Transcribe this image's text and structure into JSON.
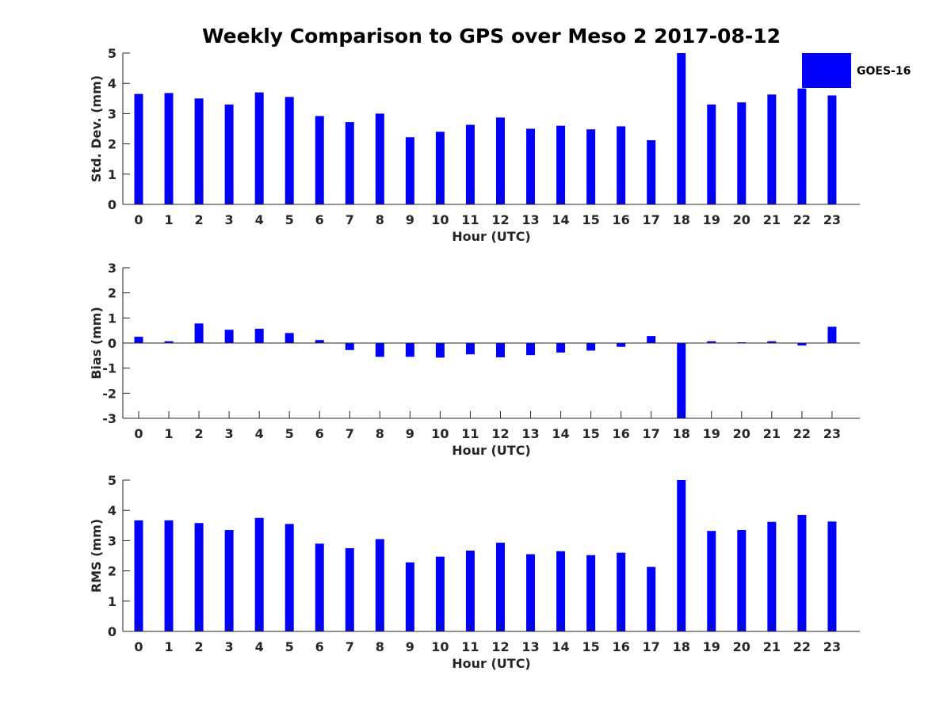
{
  "chart_data": [
    {
      "type": "bar",
      "title": "Weekly Comparison to GPS over Meso 2 2017-08-12",
      "xlabel": "Hour (UTC)",
      "ylabel": "Std. Dev. (mm)",
      "ylim": [
        0,
        5
      ],
      "yticks": [
        0,
        1,
        2,
        3,
        4,
        5
      ],
      "categories": [
        "0",
        "1",
        "2",
        "3",
        "4",
        "5",
        "6",
        "7",
        "8",
        "9",
        "10",
        "11",
        "12",
        "13",
        "14",
        "15",
        "16",
        "17",
        "18",
        "19",
        "20",
        "21",
        "22",
        "23"
      ],
      "series": [
        {
          "name": "GOES-16",
          "color": "#0000ff",
          "values": [
            3.65,
            3.68,
            3.5,
            3.3,
            3.7,
            3.55,
            2.92,
            2.72,
            3.0,
            2.22,
            2.4,
            2.63,
            2.87,
            2.5,
            2.6,
            2.48,
            2.58,
            2.12,
            5.0,
            3.3,
            3.37,
            3.63,
            3.83,
            3.6
          ]
        }
      ],
      "legend": {
        "labels": [
          "GOES-16"
        ],
        "placement": "top-right"
      }
    },
    {
      "type": "bar",
      "title": "",
      "xlabel": "Hour (UTC)",
      "ylabel": "Bias (mm)",
      "ylim": [
        -3,
        3
      ],
      "yticks": [
        -3,
        -2,
        -1,
        0,
        1,
        2,
        3
      ],
      "categories": [
        "0",
        "1",
        "2",
        "3",
        "4",
        "5",
        "6",
        "7",
        "8",
        "9",
        "10",
        "11",
        "12",
        "13",
        "14",
        "15",
        "16",
        "17",
        "18",
        "19",
        "20",
        "21",
        "22",
        "23"
      ],
      "series": [
        {
          "name": "GOES-16",
          "color": "#0000ff",
          "values": [
            0.25,
            0.07,
            0.78,
            0.53,
            0.57,
            0.4,
            0.12,
            -0.28,
            -0.55,
            -0.55,
            -0.58,
            -0.45,
            -0.57,
            -0.48,
            -0.38,
            -0.3,
            -0.15,
            0.28,
            -3.0,
            0.07,
            0.03,
            0.07,
            -0.1,
            0.65
          ]
        }
      ]
    },
    {
      "type": "bar",
      "title": "",
      "xlabel": "Hour (UTC)",
      "ylabel": "RMS (mm)",
      "ylim": [
        0,
        5
      ],
      "yticks": [
        0,
        1,
        2,
        3,
        4,
        5
      ],
      "categories": [
        "0",
        "1",
        "2",
        "3",
        "4",
        "5",
        "6",
        "7",
        "8",
        "9",
        "10",
        "11",
        "12",
        "13",
        "14",
        "15",
        "16",
        "17",
        "18",
        "19",
        "20",
        "21",
        "22",
        "23"
      ],
      "series": [
        {
          "name": "GOES-16",
          "color": "#0000ff",
          "values": [
            3.67,
            3.67,
            3.58,
            3.35,
            3.75,
            3.55,
            2.9,
            2.75,
            3.05,
            2.28,
            2.47,
            2.67,
            2.93,
            2.55,
            2.65,
            2.52,
            2.6,
            2.13,
            5.0,
            3.32,
            3.35,
            3.62,
            3.85,
            3.63
          ]
        }
      ]
    }
  ]
}
